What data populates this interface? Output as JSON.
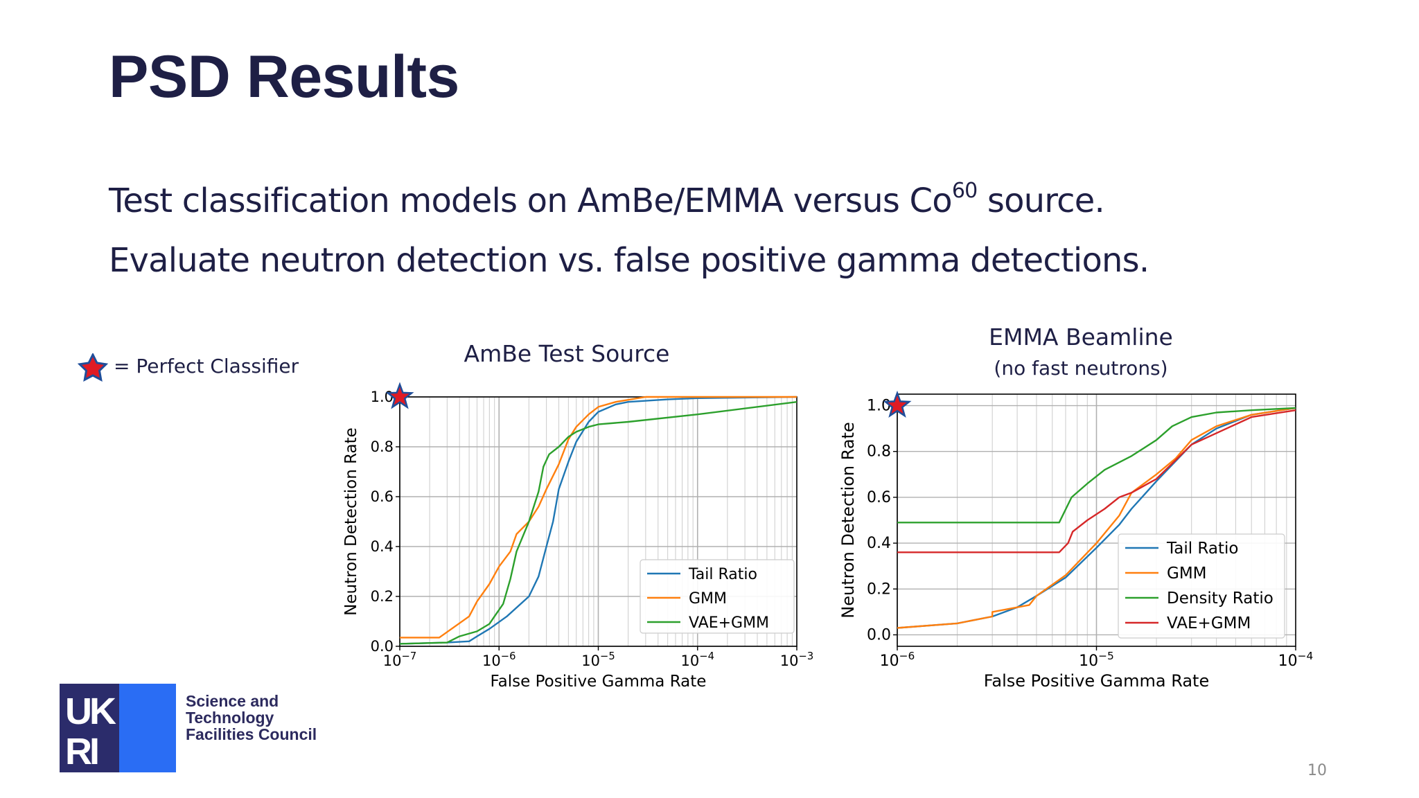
{
  "slide": {
    "title": "PSD Results",
    "bullet1_main": "Test classification models on AmBe/EMMA versus Co",
    "bullet1_sup": "60",
    "bullet1_tail": " source.",
    "bullet2": "Evaluate neutron detection vs. false positive gamma detections.",
    "star_legend": "= Perfect Classifier",
    "page_number": "10",
    "logo_text": [
      "Science and",
      "Technology",
      "Facilities Council"
    ],
    "logo_letters": "UKRI"
  },
  "colors": {
    "title": "#1e1f45",
    "Tail Ratio": "#1f77b4",
    "GMM": "#ff7f0e",
    "VAE+GMM": "#2ca02c",
    "Density Ratio": "#2ca02c",
    "star_fill": "#e01b24",
    "star_edge": "#1f4e9a"
  },
  "chart_data": [
    {
      "type": "line",
      "title": "AmBe Test Source",
      "xlabel": "False Positive Gamma Rate",
      "ylabel": "Neutron Detection Rate",
      "xscale": "log",
      "xlim": [
        1e-07,
        0.001
      ],
      "ylim": [
        0.0,
        1.0
      ],
      "xticks": [
        "10^-7",
        "10^-6",
        "10^-5",
        "10^-4",
        "10^-3"
      ],
      "yticks": [
        "0.0",
        "0.2",
        "0.4",
        "0.6",
        "0.8",
        "1.0"
      ],
      "grid": true,
      "legend": "lower-right",
      "perfect_classifier": {
        "x": 1e-07,
        "y": 1.0
      },
      "series": [
        {
          "name": "Tail Ratio",
          "color": "#1f77b4",
          "points": [
            [
              1e-07,
              0.01
            ],
            [
              3e-07,
              0.015
            ],
            [
              5e-07,
              0.02
            ],
            [
              6e-07,
              0.04
            ],
            [
              8e-07,
              0.07
            ],
            [
              1.2e-06,
              0.12
            ],
            [
              2e-06,
              0.2
            ],
            [
              2.5e-06,
              0.28
            ],
            [
              3e-06,
              0.4
            ],
            [
              3.5e-06,
              0.5
            ],
            [
              4e-06,
              0.63
            ],
            [
              5e-06,
              0.74
            ],
            [
              6e-06,
              0.82
            ],
            [
              8e-06,
              0.9
            ],
            [
              1e-05,
              0.94
            ],
            [
              1.5e-05,
              0.97
            ],
            [
              2e-05,
              0.98
            ],
            [
              5e-05,
              0.99
            ],
            [
              0.0001,
              0.995
            ],
            [
              0.001,
              1.0
            ]
          ]
        },
        {
          "name": "GMM",
          "color": "#ff7f0e",
          "points": [
            [
              1e-07,
              0.035
            ],
            [
              2.5e-07,
              0.035
            ],
            [
              5e-07,
              0.12
            ],
            [
              6e-07,
              0.18
            ],
            [
              8e-07,
              0.25
            ],
            [
              1e-06,
              0.32
            ],
            [
              1.3e-06,
              0.38
            ],
            [
              1.5e-06,
              0.45
            ],
            [
              2e-06,
              0.5
            ],
            [
              2.5e-06,
              0.56
            ],
            [
              3e-06,
              0.63
            ],
            [
              4e-06,
              0.73
            ],
            [
              5e-06,
              0.83
            ],
            [
              6e-06,
              0.88
            ],
            [
              8e-06,
              0.93
            ],
            [
              1e-05,
              0.96
            ],
            [
              1.5e-05,
              0.98
            ],
            [
              3e-05,
              1.0
            ],
            [
              0.001,
              1.0
            ]
          ]
        },
        {
          "name": "VAE+GMM",
          "color": "#2ca02c",
          "points": [
            [
              1e-07,
              0.01
            ],
            [
              3e-07,
              0.015
            ],
            [
              4e-07,
              0.04
            ],
            [
              6e-07,
              0.06
            ],
            [
              8e-07,
              0.09
            ],
            [
              9e-07,
              0.12
            ],
            [
              1.1e-06,
              0.17
            ],
            [
              1.3e-06,
              0.27
            ],
            [
              1.5e-06,
              0.38
            ],
            [
              2e-06,
              0.5
            ],
            [
              2.5e-06,
              0.62
            ],
            [
              2.8e-06,
              0.72
            ],
            [
              3.2e-06,
              0.77
            ],
            [
              4e-06,
              0.8
            ],
            [
              5e-06,
              0.84
            ],
            [
              6e-06,
              0.86
            ],
            [
              8e-06,
              0.88
            ],
            [
              1e-05,
              0.89
            ],
            [
              2e-05,
              0.9
            ],
            [
              0.0001,
              0.93
            ],
            [
              0.001,
              0.98
            ]
          ]
        }
      ]
    },
    {
      "type": "line",
      "title": "EMMA Beamline",
      "subtitle": "(no fast neutrons)",
      "xlabel": "False Positive Gamma Rate",
      "ylabel": "Neutron Detection Rate",
      "xscale": "log",
      "xlim": [
        1e-06,
        0.0001
      ],
      "ylim": [
        -0.05,
        1.05
      ],
      "xticks": [
        "10^-6",
        "10^-5",
        "10^-4"
      ],
      "yticks": [
        "0.0",
        "0.2",
        "0.4",
        "0.6",
        "0.8",
        "1.0"
      ],
      "grid": true,
      "legend": "lower-right",
      "perfect_classifier": {
        "x": 1e-06,
        "y": 1.0
      },
      "series": [
        {
          "name": "Tail Ratio",
          "color": "#1f77b4",
          "points": [
            [
              1e-06,
              0.03
            ],
            [
              2e-06,
              0.05
            ],
            [
              3e-06,
              0.08
            ],
            [
              4e-06,
              0.12
            ],
            [
              5e-06,
              0.17
            ],
            [
              7e-06,
              0.25
            ],
            [
              1e-05,
              0.38
            ],
            [
              1.3e-05,
              0.48
            ],
            [
              1.5e-05,
              0.55
            ],
            [
              2e-05,
              0.67
            ],
            [
              3e-05,
              0.83
            ],
            [
              4e-05,
              0.9
            ],
            [
              6e-05,
              0.96
            ],
            [
              0.0001,
              0.99
            ]
          ]
        },
        {
          "name": "GMM",
          "color": "#ff7f0e",
          "points": [
            [
              1e-06,
              0.03
            ],
            [
              2e-06,
              0.05
            ],
            [
              3e-06,
              0.08
            ],
            [
              3e-06,
              0.1
            ],
            [
              4.6e-06,
              0.13
            ],
            [
              5e-06,
              0.17
            ],
            [
              7e-06,
              0.26
            ],
            [
              1e-05,
              0.4
            ],
            [
              1.3e-05,
              0.52
            ],
            [
              1.5e-05,
              0.62
            ],
            [
              2e-05,
              0.7
            ],
            [
              2.5e-05,
              0.77
            ],
            [
              3e-05,
              0.85
            ],
            [
              4e-05,
              0.91
            ],
            [
              6e-05,
              0.96
            ],
            [
              0.0001,
              0.99
            ]
          ]
        },
        {
          "name": "Density Ratio",
          "color": "#2ca02c",
          "points": [
            [
              1e-06,
              0.49
            ],
            [
              6.5e-06,
              0.49
            ],
            [
              7.5e-06,
              0.6
            ],
            [
              9e-06,
              0.66
            ],
            [
              1.1e-05,
              0.72
            ],
            [
              1.5e-05,
              0.78
            ],
            [
              2e-05,
              0.85
            ],
            [
              2.4e-05,
              0.91
            ],
            [
              3e-05,
              0.95
            ],
            [
              4e-05,
              0.97
            ],
            [
              6e-05,
              0.98
            ],
            [
              0.0001,
              0.99
            ]
          ]
        },
        {
          "name": "VAE+GMM",
          "color": "#d62728",
          "points": [
            [
              1e-06,
              0.36
            ],
            [
              6.5e-06,
              0.36
            ],
            [
              7.2e-06,
              0.4
            ],
            [
              7.6e-06,
              0.45
            ],
            [
              9e-06,
              0.5
            ],
            [
              1.1e-05,
              0.55
            ],
            [
              1.3e-05,
              0.6
            ],
            [
              1.5e-05,
              0.62
            ],
            [
              2e-05,
              0.68
            ],
            [
              3e-05,
              0.83
            ],
            [
              4e-05,
              0.88
            ],
            [
              6e-05,
              0.95
            ],
            [
              0.0001,
              0.98
            ]
          ]
        }
      ]
    }
  ]
}
